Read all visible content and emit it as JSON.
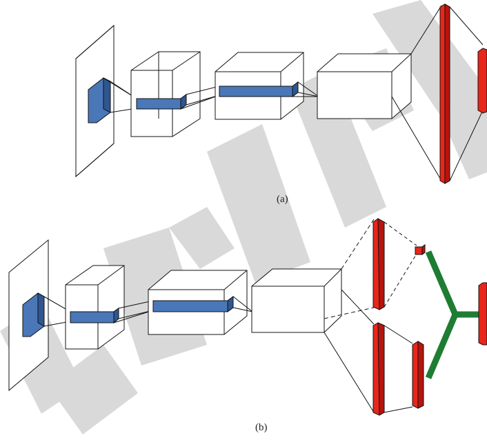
{
  "figure": {
    "panel_a": {
      "caption": "(a)"
    },
    "panel_b": {
      "caption": "(b)"
    },
    "watermark": {
      "text": "RETRACTED",
      "color": "#d9d9d9"
    }
  },
  "colors": {
    "kernel_blue": "#4a77b7",
    "kernel_blue_dark": "#2f5691",
    "fc_red": "#e8261a",
    "fc_red_dark": "#b5150d",
    "branch_green": "#1e7d33",
    "edge": "#111111"
  }
}
